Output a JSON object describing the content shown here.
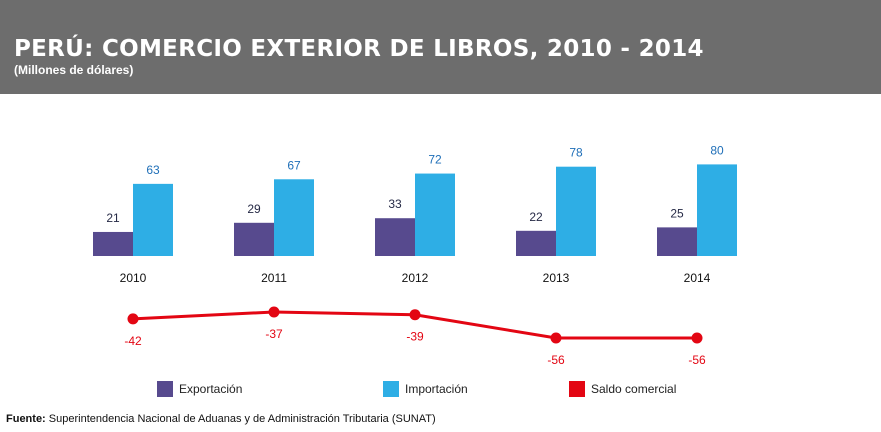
{
  "header": {
    "title": "PERÚ: COMERCIO EXTERIOR DE LIBROS, 2010 - 2014",
    "subtitle": "(Millones de dólares)"
  },
  "source": {
    "label": "Fuente:",
    "text": "Superintendencia Nacional de Aduanas y de Administración Tributaria (SUNAT)"
  },
  "colors": {
    "header_bg": "#6d6d6d",
    "exportacion": "#574a8e",
    "importacion": "#2eaee5",
    "saldo": "#e30613",
    "bar_label": "#262a46",
    "imp_label": "#1f6fb8"
  },
  "chart_data": {
    "type": "bar",
    "categories": [
      "2010",
      "2011",
      "2012",
      "2013",
      "2014"
    ],
    "series": [
      {
        "name": "Exportación",
        "values": [
          21,
          29,
          33,
          22,
          25
        ]
      },
      {
        "name": "Importación",
        "values": [
          63,
          67,
          72,
          78,
          80
        ]
      }
    ],
    "line_series": {
      "name": "Saldo comercial",
      "values": [
        -42,
        -37,
        -39,
        -56,
        -56
      ]
    },
    "legend": [
      "Exportación",
      "Importación",
      "Saldo comercial"
    ],
    "legend_position": "bottom",
    "grid": false
  }
}
